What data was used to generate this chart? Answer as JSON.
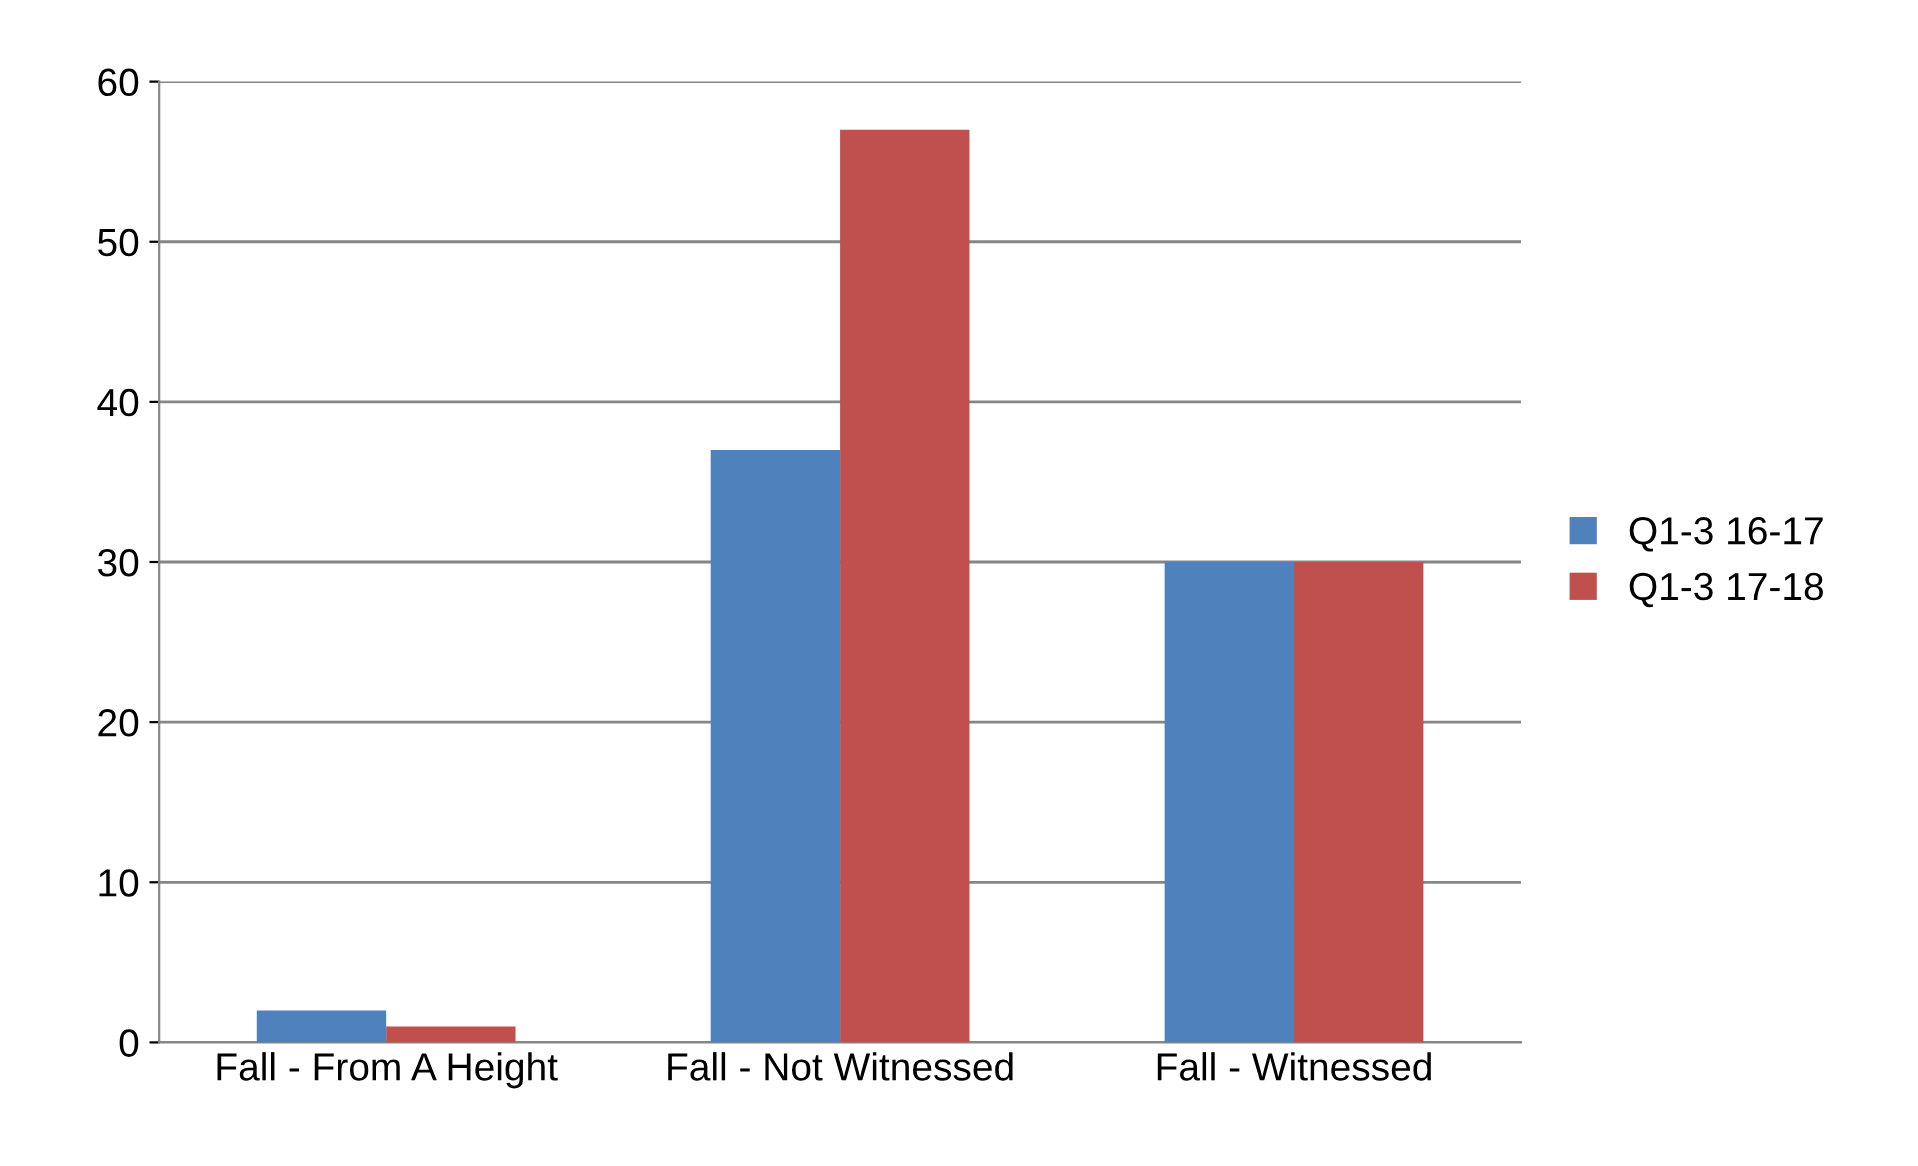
{
  "chart_data": {
    "type": "bar",
    "categories": [
      "Fall - From A Height",
      "Fall - Not Witnessed",
      "Fall - Witnessed"
    ],
    "series": [
      {
        "name": "Q1-3 16-17",
        "color": "#4f81bd",
        "values": [
          2,
          37,
          30
        ]
      },
      {
        "name": "Q1-3 17-18",
        "color": "#c0504d",
        "values": [
          1,
          57,
          30
        ]
      }
    ],
    "ylim": [
      0,
      60
    ],
    "yticks": [
      0,
      10,
      20,
      30,
      40,
      50,
      60
    ],
    "grid": "y",
    "legend": "right"
  }
}
